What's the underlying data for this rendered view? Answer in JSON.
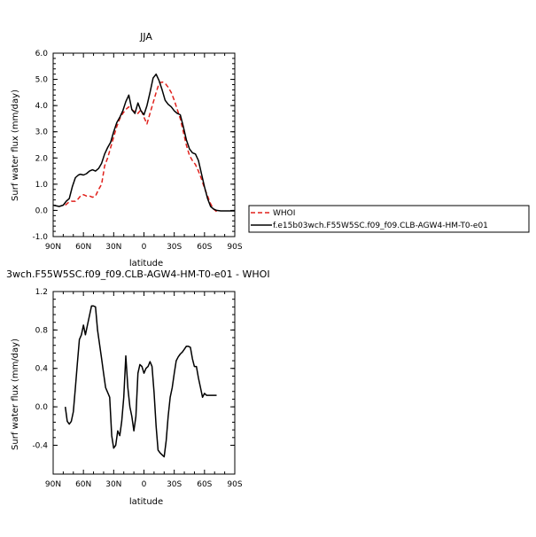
{
  "colors": {
    "whoi": "#e0211c",
    "model": "#000000",
    "diff": "#000000"
  },
  "chart_data": [
    {
      "type": "line",
      "title": "JJA",
      "xlabel": "latitude",
      "ylabel": "Surf water flux (mm/day)",
      "xlim": [
        90,
        -90
      ],
      "ylim": [
        -1.0,
        6.0
      ],
      "xticks": [
        90,
        60,
        30,
        0,
        -30,
        -60,
        -90
      ],
      "xtick_labels": [
        "90N",
        "60N",
        "30N",
        "0",
        "30S",
        "60S",
        "90S"
      ],
      "yticks": [
        -1.0,
        0.0,
        1.0,
        2.0,
        3.0,
        4.0,
        5.0,
        6.0
      ],
      "ytick_labels": [
        "-1.0",
        "0.0",
        "1.0",
        "2.0",
        "3.0",
        "4.0",
        "5.0",
        "6.0"
      ],
      "legend_position": "right",
      "series": [
        {
          "name": "WHOI",
          "style": "dashed",
          "color": "#e0211c",
          "x": [
            78,
            75,
            72,
            70,
            68,
            66,
            63,
            60,
            57,
            54,
            51,
            48,
            45,
            42,
            39,
            36,
            33,
            30,
            27,
            24,
            21,
            18,
            15,
            12,
            9,
            6,
            3,
            0,
            -3,
            -6,
            -9,
            -12,
            -15,
            -18,
            -21,
            -24,
            -27,
            -30,
            -33,
            -36,
            -39,
            -42,
            -45,
            -48,
            -51,
            -54,
            -57,
            -60,
            -63,
            -66,
            -69,
            -72
          ],
          "y": [
            0.2,
            0.3,
            0.35,
            0.35,
            0.35,
            0.4,
            0.55,
            0.6,
            0.55,
            0.55,
            0.5,
            0.55,
            0.8,
            1.0,
            1.7,
            2.0,
            2.4,
            2.8,
            3.2,
            3.5,
            3.7,
            3.85,
            3.95,
            3.85,
            3.75,
            3.7,
            3.85,
            3.55,
            3.3,
            3.7,
            4.1,
            4.5,
            4.85,
            4.9,
            4.85,
            4.7,
            4.5,
            4.2,
            3.85,
            3.5,
            3.0,
            2.5,
            2.1,
            1.9,
            1.75,
            1.5,
            1.2,
            0.85,
            0.55,
            0.25,
            0.05,
            -0.05
          ]
        },
        {
          "name": "f.e15b03wch.F55W5SC.f09_f09.CLB-AGW4-HM-T0-e01",
          "style": "solid",
          "color": "#000000",
          "x": [
            90,
            84,
            80,
            77,
            74,
            71,
            68,
            65,
            63,
            60,
            57,
            54,
            51,
            48,
            45,
            42,
            39,
            36,
            33,
            30,
            27,
            24,
            21,
            18,
            15,
            12,
            9,
            6,
            3,
            0,
            -3,
            -6,
            -9,
            -12,
            -15,
            -18,
            -21,
            -24,
            -27,
            -30,
            -33,
            -36,
            -39,
            -42,
            -45,
            -48,
            -51,
            -54,
            -57,
            -60,
            -63,
            -66,
            -69,
            -72,
            -76,
            -80,
            -85,
            -90
          ],
          "y": [
            0.2,
            0.15,
            0.2,
            0.35,
            0.45,
            0.9,
            1.25,
            1.35,
            1.38,
            1.35,
            1.4,
            1.5,
            1.55,
            1.5,
            1.6,
            1.8,
            2.15,
            2.4,
            2.6,
            3.0,
            3.35,
            3.55,
            3.8,
            4.15,
            4.4,
            3.85,
            3.7,
            4.1,
            3.8,
            3.65,
            4.0,
            4.5,
            5.05,
            5.2,
            4.95,
            4.6,
            4.2,
            4.05,
            3.95,
            3.8,
            3.7,
            3.65,
            3.2,
            2.7,
            2.35,
            2.2,
            2.15,
            1.9,
            1.4,
            0.9,
            0.45,
            0.15,
            0.05,
            0.0,
            -0.02,
            -0.02,
            -0.02,
            -0.02
          ]
        }
      ]
    },
    {
      "type": "line",
      "title": "3wch.F55W5SC.f09_f09.CLB-AGW4-HM-T0-e01 - WHOI",
      "xlabel": "latitude",
      "ylabel": "Surf water flux (mm/day)",
      "xlim": [
        90,
        -90
      ],
      "ylim": [
        -0.7,
        1.2
      ],
      "xticks": [
        90,
        60,
        30,
        0,
        -30,
        -60,
        -90
      ],
      "xtick_labels": [
        "90N",
        "60N",
        "30N",
        "0",
        "30S",
        "60S",
        "90S"
      ],
      "yticks": [
        -0.4,
        0.0,
        0.4,
        0.8,
        1.2
      ],
      "ytick_labels": [
        "-0.4",
        "0.0",
        "0.4",
        "0.8",
        "1.2"
      ],
      "series": [
        {
          "style": "solid",
          "color": "#000000",
          "x": [
            78,
            76,
            74,
            72,
            70,
            68,
            66,
            64,
            62,
            60,
            58,
            56,
            54,
            52,
            50,
            48,
            46,
            44,
            42,
            40,
            38,
            36,
            34,
            32,
            30,
            28,
            26,
            24,
            22,
            20,
            18,
            16,
            14,
            12,
            10,
            8,
            6,
            4,
            2,
            0,
            -2,
            -4,
            -6,
            -8,
            -10,
            -12,
            -14,
            -16,
            -18,
            -20,
            -22,
            -24,
            -26,
            -28,
            -30,
            -32,
            -34,
            -36,
            -38,
            -40,
            -42,
            -44,
            -46,
            -48,
            -50,
            -52,
            -54,
            -56,
            -58,
            -60,
            -62,
            -64,
            -66,
            -68,
            -70,
            -72
          ],
          "y": [
            0.0,
            -0.15,
            -0.18,
            -0.15,
            -0.05,
            0.2,
            0.45,
            0.7,
            0.75,
            0.85,
            0.75,
            0.85,
            0.95,
            1.05,
            1.05,
            1.04,
            0.8,
            0.65,
            0.5,
            0.35,
            0.2,
            0.15,
            0.1,
            -0.3,
            -0.43,
            -0.4,
            -0.25,
            -0.3,
            -0.15,
            0.1,
            0.53,
            0.2,
            0.0,
            -0.1,
            -0.25,
            -0.1,
            0.35,
            0.44,
            0.42,
            0.35,
            0.4,
            0.42,
            0.47,
            0.42,
            0.15,
            -0.2,
            -0.45,
            -0.48,
            -0.5,
            -0.52,
            -0.35,
            -0.1,
            0.1,
            0.2,
            0.35,
            0.48,
            0.52,
            0.55,
            0.57,
            0.6,
            0.63,
            0.63,
            0.62,
            0.5,
            0.42,
            0.42,
            0.3,
            0.2,
            0.1,
            0.14,
            0.12,
            0.12,
            0.12,
            0.12,
            0.12,
            0.12
          ]
        }
      ]
    }
  ]
}
